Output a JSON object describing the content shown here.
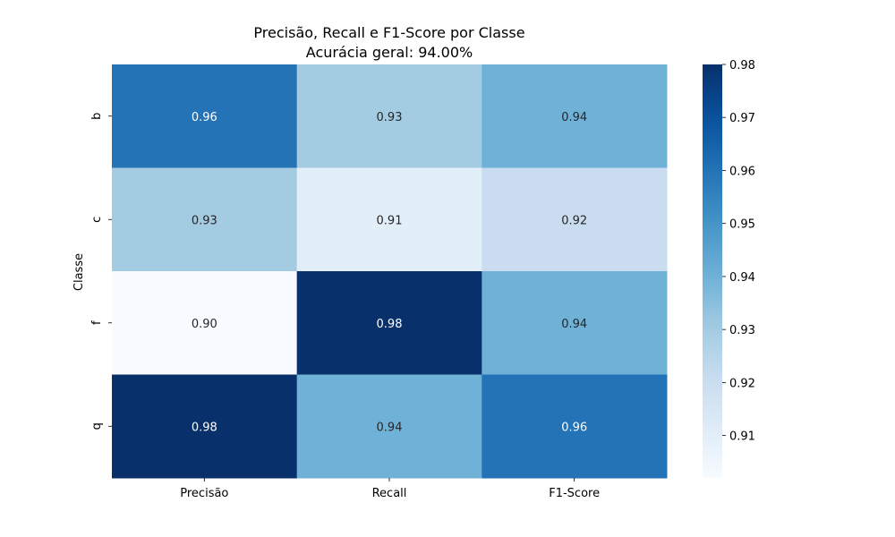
{
  "chart_data": {
    "type": "heatmap",
    "title": "Precisão, Recall e F1-Score por Classe",
    "subtitle": "Acurácia geral: 94.00%",
    "xlabel": "",
    "ylabel": "Classe",
    "x_categories": [
      "Precisão",
      "Recall",
      "F1-Score"
    ],
    "y_categories": [
      "b",
      "c",
      "f",
      "q"
    ],
    "values": [
      [
        0.96,
        0.93,
        0.94
      ],
      [
        0.93,
        0.91,
        0.92
      ],
      [
        0.9,
        0.98,
        0.94
      ],
      [
        0.98,
        0.94,
        0.96
      ]
    ],
    "value_labels": [
      [
        "0.96",
        "0.93",
        "0.94"
      ],
      [
        "0.93",
        "0.91",
        "0.92"
      ],
      [
        "0.90",
        "0.98",
        "0.94"
      ],
      [
        "0.98",
        "0.94",
        "0.96"
      ]
    ],
    "colormap": "Blues",
    "color_range": [
      0.902,
      0.98
    ],
    "colorbar_ticks": [
      "0.91",
      "0.92",
      "0.93",
      "0.94",
      "0.95",
      "0.96",
      "0.97",
      "0.98"
    ],
    "colorbar_tick_values": [
      0.91,
      0.92,
      0.93,
      0.94,
      0.95,
      0.96,
      0.97,
      0.98
    ],
    "grid": false,
    "legend": "colorbar-right"
  }
}
